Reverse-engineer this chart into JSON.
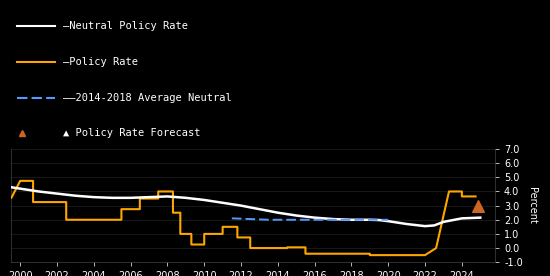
{
  "background_color": "#000000",
  "text_color": "#ffffff",
  "grid_color": "#2a2a2a",
  "neutral_policy_rate_color": "#ffffff",
  "policy_rate_color": "#FFA500",
  "avg_neutral_color": "#5599FF",
  "forecast_color": "#CC6622",
  "ylim": [
    -1.0,
    7.0
  ],
  "xlim": [
    1999.5,
    2025.8
  ],
  "yticks": [
    -1.0,
    0.0,
    1.0,
    2.0,
    3.0,
    4.0,
    5.0,
    6.0,
    7.0
  ],
  "xticks": [
    2000,
    2002,
    2004,
    2006,
    2008,
    2010,
    2012,
    2014,
    2016,
    2018,
    2020,
    2022,
    2024
  ],
  "neutral_policy_rate": {
    "x": [
      1999.5,
      2000.0,
      2001.0,
      2002.0,
      2003.0,
      2004.0,
      2005.0,
      2006.0,
      2007.0,
      2008.0,
      2009.0,
      2010.0,
      2011.0,
      2012.0,
      2013.0,
      2014.0,
      2015.0,
      2016.0,
      2017.0,
      2018.0,
      2019.0,
      2019.5,
      2020.0,
      2020.5,
      2021.0,
      2022.0,
      2022.5,
      2023.0,
      2024.0,
      2025.0
    ],
    "y": [
      4.3,
      4.2,
      4.0,
      3.85,
      3.7,
      3.6,
      3.55,
      3.55,
      3.6,
      3.65,
      3.55,
      3.4,
      3.2,
      3.0,
      2.75,
      2.5,
      2.3,
      2.15,
      2.05,
      2.0,
      2.0,
      1.98,
      1.9,
      1.8,
      1.7,
      1.55,
      1.6,
      1.85,
      2.1,
      2.15
    ]
  },
  "policy_rate": {
    "x": [
      1999.5,
      1999.5,
      2000.0,
      2000.7,
      2000.7,
      2001.5,
      2001.5,
      2002.5,
      2002.5,
      2003.5,
      2003.5,
      2005.5,
      2005.5,
      2006.5,
      2006.5,
      2007.5,
      2007.5,
      2008.3,
      2008.3,
      2008.7,
      2008.7,
      2009.3,
      2009.3,
      2010.0,
      2010.0,
      2011.0,
      2011.0,
      2011.8,
      2011.8,
      2012.5,
      2012.5,
      2013.5,
      2013.5,
      2014.5,
      2014.5,
      2015.5,
      2015.5,
      2019.0,
      2019.0,
      2022.0,
      2022.0,
      2022.6,
      2022.6,
      2023.3,
      2023.3,
      2024.0,
      2024.0,
      2024.8
    ],
    "y": [
      3.5,
      3.5,
      4.75,
      4.75,
      3.25,
      3.25,
      3.25,
      3.25,
      2.0,
      2.0,
      2.0,
      2.0,
      2.75,
      2.75,
      3.5,
      3.5,
      4.0,
      4.0,
      2.5,
      2.5,
      1.0,
      1.0,
      0.25,
      0.25,
      1.0,
      1.0,
      1.5,
      1.5,
      0.75,
      0.75,
      0.0,
      0.0,
      0.0,
      0.0,
      0.05,
      0.05,
      -0.4,
      -0.4,
      -0.5,
      -0.5,
      -0.5,
      0.0,
      0.0,
      4.0,
      4.0,
      4.0,
      3.65,
      3.65
    ]
  },
  "avg_neutral": {
    "x": [
      2011.5,
      2012.5,
      2013.5,
      2014.5,
      2015.5,
      2016.5,
      2017.5,
      2018.5,
      2019.5,
      2020.0
    ],
    "y": [
      2.1,
      2.05,
      2.0,
      2.0,
      2.0,
      2.0,
      2.0,
      2.0,
      2.0,
      2.0
    ]
  },
  "forecast": {
    "x": [
      2024.85
    ],
    "y": [
      3.0
    ]
  },
  "ylabel": "Percent"
}
